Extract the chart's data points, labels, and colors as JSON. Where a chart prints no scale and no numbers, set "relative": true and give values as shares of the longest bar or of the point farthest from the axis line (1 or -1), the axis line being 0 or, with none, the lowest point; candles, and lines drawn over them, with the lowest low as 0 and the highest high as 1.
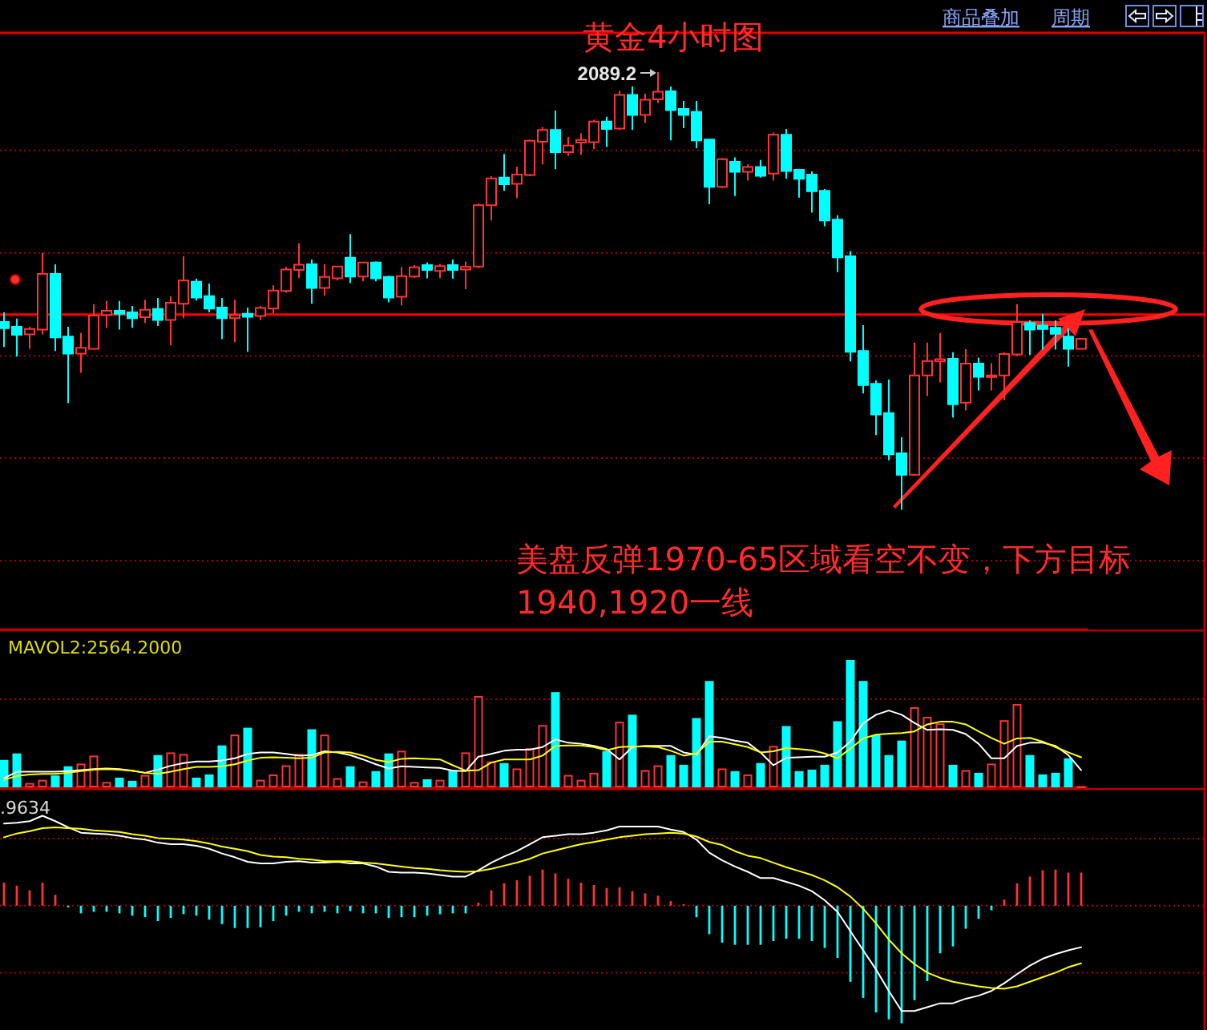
{
  "chart_data": [
    {
      "type": "candlestick",
      "title": "黄金4小时图",
      "relative": true,
      "categories": [
        null,
        null,
        null,
        null,
        null,
        null,
        null,
        null,
        null,
        null,
        null,
        null,
        null,
        null,
        null,
        null,
        null,
        null,
        null,
        null,
        null,
        null,
        null,
        null,
        null,
        null,
        null,
        null,
        null,
        null,
        null,
        null,
        null,
        null,
        null,
        null,
        null,
        null,
        null,
        null,
        null,
        null,
        null,
        null,
        null,
        null,
        null,
        null,
        null,
        null,
        null,
        null,
        null,
        null,
        null,
        null,
        null,
        null,
        null,
        null,
        null,
        null,
        null,
        null,
        null,
        null,
        null,
        null,
        null,
        null,
        null,
        null,
        null,
        null,
        null,
        null,
        null,
        null,
        null,
        null,
        null,
        null,
        null,
        null,
        null
      ],
      "ohlc": [
        [
          0.429,
          0.451,
          0.372,
          0.415
        ],
        [
          0.418,
          0.437,
          0.35,
          0.4
        ],
        [
          0.401,
          0.418,
          0.368,
          0.413
        ],
        [
          0.412,
          0.587,
          0.401,
          0.539
        ],
        [
          0.539,
          0.561,
          0.363,
          0.394
        ],
        [
          0.396,
          0.418,
          0.244,
          0.357
        ],
        [
          0.357,
          0.404,
          0.313,
          0.37
        ],
        [
          0.368,
          0.47,
          0.368,
          0.444
        ],
        [
          0.445,
          0.477,
          0.416,
          0.455
        ],
        [
          0.455,
          0.477,
          0.412,
          0.448
        ],
        [
          0.451,
          0.466,
          0.416,
          0.438
        ],
        [
          0.44,
          0.48,
          0.427,
          0.457
        ],
        [
          0.459,
          0.484,
          0.42,
          0.434
        ],
        [
          0.434,
          0.488,
          0.376,
          0.473
        ],
        [
          0.471,
          0.579,
          0.438,
          0.524
        ],
        [
          0.521,
          0.528,
          0.478,
          0.485
        ],
        [
          0.488,
          0.517,
          0.451,
          0.46
        ],
        [
          0.462,
          0.484,
          0.39,
          0.438
        ],
        [
          0.438,
          0.48,
          0.383,
          0.445
        ],
        [
          0.448,
          0.462,
          0.361,
          0.441
        ],
        [
          0.443,
          0.466,
          0.434,
          0.461
        ],
        [
          0.46,
          0.513,
          0.449,
          0.501
        ],
        [
          0.5,
          0.555,
          0.496,
          0.549
        ],
        [
          0.548,
          0.609,
          0.53,
          0.56
        ],
        [
          0.561,
          0.572,
          0.471,
          0.507
        ],
        [
          0.507,
          0.561,
          0.489,
          0.532
        ],
        [
          0.529,
          0.556,
          0.524,
          0.556
        ],
        [
          0.576,
          0.63,
          0.518,
          0.533
        ],
        [
          0.533,
          0.565,
          0.522,
          0.565
        ],
        [
          0.565,
          0.568,
          0.522,
          0.529
        ],
        [
          0.532,
          0.535,
          0.474,
          0.485
        ],
        [
          0.487,
          0.555,
          0.467,
          0.534
        ],
        [
          0.533,
          0.559,
          0.53,
          0.554
        ],
        [
          0.559,
          0.565,
          0.529,
          0.548
        ],
        [
          0.546,
          0.562,
          0.529,
          0.557
        ],
        [
          0.559,
          0.572,
          0.528,
          0.548
        ],
        [
          0.549,
          0.567,
          0.504,
          0.555
        ],
        [
          0.556,
          0.7,
          0.552,
          0.696
        ],
        [
          0.696,
          0.762,
          0.661,
          0.757
        ],
        [
          0.759,
          0.813,
          0.729,
          0.744
        ],
        [
          0.745,
          0.784,
          0.712,
          0.766
        ],
        [
          0.765,
          0.846,
          0.762,
          0.843
        ],
        [
          0.841,
          0.874,
          0.789,
          0.868
        ],
        [
          0.868,
          0.912,
          0.778,
          0.817
        ],
        [
          0.817,
          0.852,
          0.809,
          0.832
        ],
        [
          0.839,
          0.86,
          0.811,
          0.845
        ],
        [
          0.84,
          0.891,
          0.824,
          0.887
        ],
        [
          0.887,
          0.898,
          0.829,
          0.87
        ],
        [
          0.871,
          0.957,
          0.868,
          0.948
        ],
        [
          0.948,
          0.967,
          0.868,
          0.902
        ],
        [
          0.902,
          0.951,
          0.884,
          0.937
        ],
        [
          0.938,
          1,
          0.929,
          0.955
        ],
        [
          0.956,
          0.967,
          0.844,
          0.913
        ],
        [
          0.916,
          0.934,
          0.872,
          0.902
        ],
        [
          0.909,
          0.934,
          0.826,
          0.844
        ],
        [
          0.846,
          0.846,
          0.698,
          0.738
        ],
        [
          0.738,
          0.804,
          0.735,
          0.801
        ],
        [
          0.795,
          0.805,
          0.717,
          0.772
        ],
        [
          0.772,
          0.789,
          0.752,
          0.783
        ],
        [
          0.783,
          0.799,
          0.759,
          0.763
        ],
        [
          0.768,
          0.862,
          0.752,
          0.857
        ],
        [
          0.857,
          0.87,
          0.756,
          0.774
        ],
        [
          0.777,
          0.779,
          0.713,
          0.756
        ],
        [
          0.766,
          0.773,
          0.679,
          0.728
        ],
        [
          0.729,
          0.733,
          0.648,
          0.661
        ],
        [
          0.663,
          0.673,
          0.543,
          0.577
        ],
        [
          0.579,
          0.591,
          0.339,
          0.361
        ],
        [
          0.363,
          0.422,
          0.266,
          0.285
        ],
        [
          0.288,
          0.296,
          0.171,
          0.218
        ],
        [
          0.221,
          0.298,
          0.113,
          0.127
        ],
        [
          0.129,
          0.166,
          0,
          0.08
        ],
        [
          0.08,
          0.382,
          0.078,
          0.307
        ],
        [
          0.307,
          0.382,
          0.26,
          0.34
        ],
        [
          0.339,
          0.404,
          0.291,
          0.344
        ],
        [
          0.345,
          0.36,
          0.211,
          0.241
        ],
        [
          0.245,
          0.367,
          0.227,
          0.334
        ],
        [
          0.334,
          0.348,
          0.273,
          0.304
        ],
        [
          0.304,
          0.335,
          0.273,
          0.307
        ],
        [
          0.307,
          0.36,
          0.251,
          0.356
        ],
        [
          0.355,
          0.47,
          0.351,
          0.429
        ],
        [
          0.427,
          0.433,
          0.354,
          0.412
        ],
        [
          0.421,
          0.448,
          0.366,
          0.413
        ],
        [
          0.416,
          0.433,
          0.366,
          0.402
        ],
        [
          0.396,
          0.415,
          0.327,
          0.368
        ],
        [
          0.368,
          0.391,
          0.368,
          0.391
        ]
      ],
      "colors": [
        "#00ffff",
        "#00ffff",
        "#ff3232",
        "#ff3232",
        "#00ffff",
        "#00ffff",
        "#ff3232",
        "#ff3232",
        "#ff3232",
        "#00ffff",
        "#00ffff",
        "#ff3232",
        "#00ffff",
        "#ff3232",
        "#ff3232",
        "#00ffff",
        "#00ffff",
        "#00ffff",
        "#ff3232",
        "#00ffff",
        "#ff3232",
        "#ff3232",
        "#ff3232",
        "#ff3232",
        "#00ffff",
        "#ff3232",
        "#ff3232",
        "#00ffff",
        "#ff3232",
        "#00ffff",
        "#00ffff",
        "#ff3232",
        "#ff3232",
        "#00ffff",
        "#ff3232",
        "#00ffff",
        "#ff3232",
        "#ff3232",
        "#ff3232",
        "#00ffff",
        "#ff3232",
        "#ff3232",
        "#ff3232",
        "#00ffff",
        "#ff3232",
        "#ff3232",
        "#ff3232",
        "#00ffff",
        "#ff3232",
        "#00ffff",
        "#ff3232",
        "#ff3232",
        "#00ffff",
        "#00ffff",
        "#00ffff",
        "#00ffff",
        "#ff3232",
        "#00ffff",
        "#ff3232",
        "#00ffff",
        "#ff3232",
        "#00ffff",
        "#00ffff",
        "#00ffff",
        "#00ffff",
        "#00ffff",
        "#00ffff",
        "#00ffff",
        "#00ffff",
        "#00ffff",
        "#00ffff",
        "#ff3232",
        "#ff3232",
        "#ff3232",
        "#00ffff",
        "#ff3232",
        "#00ffff",
        "#ff3232",
        "#ff3232",
        "#ff3232",
        "#00ffff",
        "#00ffff",
        "#00ffff",
        "#00ffff",
        "#ff3232"
      ],
      "ref_lines": [
        {
          "axis": "y",
          "value": 0.446,
          "color": "#ff0000"
        },
        {
          "axis": "y",
          "value": 0.821,
          "color": "#a80000",
          "line_style": "dotted"
        },
        {
          "axis": "y",
          "value": 0.587,
          "color": "#a80000",
          "line_style": "dotted"
        },
        {
          "axis": "y",
          "value": 0.352,
          "color": "#a80000",
          "line_style": "dotted"
        },
        {
          "axis": "y",
          "value": 0.118,
          "color": "#a80000",
          "line_style": "dotted"
        },
        {
          "axis": "y",
          "value": -0.116,
          "color": "#a80000",
          "line_style": "dotted"
        }
      ],
      "annotations": [
        "2089.2",
        "美盘反弹1970-65区域看空不变，下方目标1940,1920一线",
        "商品叠加",
        "周期"
      ]
    },
    {
      "type": "bar",
      "relative": true,
      "categories": [
        null,
        null,
        null,
        null,
        null,
        null,
        null,
        null,
        null,
        null,
        null,
        null,
        null,
        null,
        null,
        null,
        null,
        null,
        null,
        null,
        null,
        null,
        null,
        null,
        null,
        null,
        null,
        null,
        null,
        null,
        null,
        null,
        null,
        null,
        null,
        null,
        null,
        null,
        null,
        null,
        null,
        null,
        null,
        null,
        null,
        null,
        null,
        null,
        null,
        null,
        null,
        null,
        null,
        null,
        null,
        null,
        null,
        null,
        null,
        null,
        null,
        null,
        null,
        null,
        null,
        null,
        null,
        null,
        null,
        null,
        null,
        null,
        null,
        null,
        null,
        null,
        null,
        null,
        null,
        null,
        null,
        null,
        null,
        null,
        null
      ],
      "series": [
        {
          "type": "bar",
          "values": [
            0.215,
            0.266,
            0.034,
            0.059,
            0.093,
            0.165,
            0.186,
            0.249,
            0.042,
            0.076,
            0.051,
            0.097,
            0.253,
            0.274,
            0.262,
            0.076,
            0.101,
            0.329,
            0.414,
            0.468,
            0.059,
            0.101,
            0.173,
            0.262,
            0.456,
            0.414,
            0.072,
            0.165,
            0.046,
            0.127,
            0.266,
            0.287,
            0.042,
            0.063,
            0.059,
            0.135,
            0.274,
            0.717,
            0.203,
            0.19,
            0.148,
            0.308,
            0.489,
            0.747,
            0.097,
            0.059,
            0.114,
            0.283,
            0.515,
            0.57,
            0.135,
            0.173,
            0.253,
            0.177,
            0.544,
            0.835,
            0.148,
            0.127,
            0.101,
            0.19,
            0.325,
            0.481,
            0.127,
            0.139,
            0.177,
            0.519,
            1,
            0.835,
            0.409,
            0.253,
            0.367,
            0.629,
            0.553,
            0.502,
            0.177,
            0.135,
            0.114,
            0.186,
            0.527,
            0.654,
            0.253,
            0.101,
            0.114,
            0.228,
            0.008
          ],
          "colors": [
            "#00ffff",
            "#00ffff",
            "#ff3232",
            "#ff3232",
            "#00ffff",
            "#00ffff",
            "#ff3232",
            "#ff3232",
            "#ff3232",
            "#00ffff",
            "#00ffff",
            "#ff3232",
            "#00ffff",
            "#ff3232",
            "#ff3232",
            "#00ffff",
            "#00ffff",
            "#00ffff",
            "#ff3232",
            "#00ffff",
            "#ff3232",
            "#ff3232",
            "#ff3232",
            "#ff3232",
            "#00ffff",
            "#ff3232",
            "#ff3232",
            "#00ffff",
            "#ff3232",
            "#00ffff",
            "#00ffff",
            "#ff3232",
            "#ff3232",
            "#00ffff",
            "#ff3232",
            "#00ffff",
            "#ff3232",
            "#ff3232",
            "#ff3232",
            "#00ffff",
            "#ff3232",
            "#ff3232",
            "#ff3232",
            "#00ffff",
            "#ff3232",
            "#ff3232",
            "#ff3232",
            "#00ffff",
            "#ff3232",
            "#00ffff",
            "#ff3232",
            "#ff3232",
            "#00ffff",
            "#00ffff",
            "#00ffff",
            "#00ffff",
            "#ff3232",
            "#00ffff",
            "#ff3232",
            "#00ffff",
            "#ff3232",
            "#00ffff",
            "#00ffff",
            "#00ffff",
            "#00ffff",
            "#00ffff",
            "#00ffff",
            "#00ffff",
            "#00ffff",
            "#00ffff",
            "#00ffff",
            "#ff3232",
            "#ff3232",
            "#ff3232",
            "#00ffff",
            "#ff3232",
            "#00ffff",
            "#ff3232",
            "#ff3232",
            "#ff3232",
            "#00ffff",
            "#00ffff",
            "#00ffff",
            "#00ffff",
            "#ff3232"
          ]
        },
        {
          "type": "line",
          "color": "#ffffff",
          "values": [
            0.072,
            0.122,
            0.122,
            0.122,
            0.122,
            0.127,
            0.135,
            0.143,
            0.148,
            0.143,
            0.131,
            0.114,
            0.139,
            0.169,
            0.19,
            0.203,
            0.203,
            0.211,
            0.228,
            0.262,
            0.274,
            0.274,
            0.262,
            0.249,
            0.253,
            0.283,
            0.274,
            0.253,
            0.219,
            0.181,
            0.148,
            0.165,
            0.16,
            0.156,
            0.152,
            0.131,
            0.127,
            0.241,
            0.262,
            0.287,
            0.295,
            0.295,
            0.316,
            0.376,
            0.35,
            0.342,
            0.325,
            0.3,
            0.219,
            0.316,
            0.325,
            0.325,
            0.325,
            0.274,
            0.257,
            0.401,
            0.388,
            0.367,
            0.35,
            0.274,
            0.173,
            0.232,
            0.236,
            0.241,
            0.241,
            0.274,
            0.359,
            0.502,
            0.57,
            0.603,
            0.57,
            0.506,
            0.451,
            0.456,
            0.451,
            0.418,
            0.342,
            0.228,
            0.228,
            0.325,
            0.35,
            0.35,
            0.325,
            0.253,
            0.135
          ]
        },
        {
          "type": "line",
          "color": "#ffff00",
          "values": [
            0.059,
            0.089,
            0.101,
            0.105,
            0.105,
            0.114,
            0.127,
            0.139,
            0.143,
            0.139,
            0.131,
            0.114,
            0.105,
            0.122,
            0.143,
            0.16,
            0.16,
            0.165,
            0.181,
            0.211,
            0.232,
            0.236,
            0.232,
            0.228,
            0.232,
            0.274,
            0.278,
            0.274,
            0.249,
            0.215,
            0.198,
            0.224,
            0.228,
            0.224,
            0.219,
            0.173,
            0.131,
            0.135,
            0.194,
            0.219,
            0.219,
            0.219,
            0.249,
            0.325,
            0.329,
            0.329,
            0.316,
            0.291,
            0.316,
            0.321,
            0.321,
            0.316,
            0.287,
            0.249,
            0.266,
            0.359,
            0.359,
            0.338,
            0.316,
            0.274,
            0.283,
            0.308,
            0.3,
            0.291,
            0.266,
            0.228,
            0.304,
            0.384,
            0.414,
            0.422,
            0.426,
            0.439,
            0.494,
            0.515,
            0.515,
            0.494,
            0.439,
            0.388,
            0.342,
            0.384,
            0.388,
            0.359,
            0.316,
            0.274,
            0.236
          ]
        }
      ],
      "ref_lines": [
        {
          "axis": "y",
          "value": 0.692,
          "color": "#a80000",
          "line_style": "dotted"
        }
      ],
      "annotations": [
        "MAVOL2:2564.2000"
      ]
    },
    {
      "type": "bar",
      "relative": true,
      "categories": [
        null,
        null,
        null,
        null,
        null,
        null,
        null,
        null,
        null,
        null,
        null,
        null,
        null,
        null,
        null,
        null,
        null,
        null,
        null,
        null,
        null,
        null,
        null,
        null,
        null,
        null,
        null,
        null,
        null,
        null,
        null,
        null,
        null,
        null,
        null,
        null,
        null,
        null,
        null,
        null,
        null,
        null,
        null,
        null,
        null,
        null,
        null,
        null,
        null,
        null,
        null,
        null,
        null,
        null,
        null,
        null,
        null,
        null,
        null,
        null,
        null,
        null,
        null,
        null,
        null,
        null,
        null,
        null,
        null,
        null,
        null,
        null,
        null,
        null,
        null,
        null,
        null,
        null,
        null,
        null,
        null,
        null,
        null,
        null,
        null
      ],
      "series": [
        {
          "type": "bar",
          "values": [
            0.196,
            0.17,
            0.131,
            0.196,
            0.092,
            -0.013,
            -0.065,
            -0.052,
            -0.052,
            -0.065,
            -0.085,
            -0.098,
            -0.131,
            -0.105,
            -0.072,
            -0.085,
            -0.118,
            -0.157,
            -0.19,
            -0.19,
            -0.183,
            -0.131,
            -0.085,
            -0.052,
            -0.065,
            -0.052,
            -0.065,
            -0.046,
            -0.065,
            -0.065,
            -0.105,
            -0.098,
            -0.098,
            -0.085,
            -0.072,
            -0.065,
            -0.065,
            0.026,
            0.131,
            0.19,
            0.216,
            0.255,
            0.307,
            0.275,
            0.229,
            0.196,
            0.176,
            0.15,
            0.157,
            0.124,
            0.105,
            0.085,
            0.039,
            0.013,
            -0.098,
            -0.242,
            -0.314,
            -0.333,
            -0.333,
            -0.333,
            -0.301,
            -0.281,
            -0.281,
            -0.301,
            -0.359,
            -0.444,
            -0.647,
            -0.784,
            -0.908,
            -0.967,
            -1,
            -0.804,
            -0.641,
            -0.405,
            -0.346,
            -0.196,
            -0.111,
            -0.039,
            0.052,
            0.19,
            0.248,
            0.301,
            0.307,
            0.281,
            0.281
          ],
          "colors": [
            "#ff3232",
            "#ff3232",
            "#ff3232",
            "#ff3232",
            "#ff3232",
            "#00ffff",
            "#00ffff",
            "#00ffff",
            "#00ffff",
            "#00ffff",
            "#00ffff",
            "#00ffff",
            "#00ffff",
            "#00ffff",
            "#00ffff",
            "#00ffff",
            "#00ffff",
            "#00ffff",
            "#00ffff",
            "#00ffff",
            "#00ffff",
            "#00ffff",
            "#00ffff",
            "#00ffff",
            "#00ffff",
            "#00ffff",
            "#00ffff",
            "#00ffff",
            "#00ffff",
            "#00ffff",
            "#00ffff",
            "#00ffff",
            "#00ffff",
            "#00ffff",
            "#00ffff",
            "#00ffff",
            "#00ffff",
            "#ff3232",
            "#ff3232",
            "#ff3232",
            "#ff3232",
            "#ff3232",
            "#ff3232",
            "#ff3232",
            "#ff3232",
            "#ff3232",
            "#ff3232",
            "#ff3232",
            "#ff3232",
            "#ff3232",
            "#ff3232",
            "#ff3232",
            "#ff3232",
            "#ff3232",
            "#00ffff",
            "#00ffff",
            "#00ffff",
            "#00ffff",
            "#00ffff",
            "#00ffff",
            "#00ffff",
            "#00ffff",
            "#00ffff",
            "#00ffff",
            "#00ffff",
            "#00ffff",
            "#00ffff",
            "#00ffff",
            "#00ffff",
            "#00ffff",
            "#00ffff",
            "#00ffff",
            "#00ffff",
            "#00ffff",
            "#00ffff",
            "#00ffff",
            "#00ffff",
            "#00ffff",
            "#ff3232",
            "#ff3232",
            "#ff3232",
            "#ff3232",
            "#ff3232",
            "#ff3232",
            "#ff3232"
          ]
        },
        {
          "type": "line",
          "color": "#ffffff",
          "values": [
            0.699,
            0.706,
            0.719,
            0.765,
            0.719,
            0.667,
            0.621,
            0.614,
            0.608,
            0.595,
            0.575,
            0.562,
            0.536,
            0.523,
            0.523,
            0.51,
            0.484,
            0.444,
            0.412,
            0.373,
            0.359,
            0.359,
            0.373,
            0.379,
            0.366,
            0.366,
            0.373,
            0.359,
            0.359,
            0.333,
            0.288,
            0.281,
            0.281,
            0.275,
            0.261,
            0.248,
            0.248,
            0.301,
            0.366,
            0.418,
            0.464,
            0.523,
            0.582,
            0.595,
            0.608,
            0.608,
            0.621,
            0.641,
            0.673,
            0.673,
            0.673,
            0.673,
            0.647,
            0.627,
            0.562,
            0.451,
            0.386,
            0.333,
            0.288,
            0.235,
            0.235,
            0.203,
            0.17,
            0.124,
            0.046,
            -0.052,
            -0.216,
            -0.379,
            -0.542,
            -0.725,
            -0.895,
            -0.895,
            -0.863,
            -0.83,
            -0.83,
            -0.791,
            -0.765,
            -0.725,
            -0.66,
            -0.582,
            -0.51,
            -0.451,
            -0.412,
            -0.379,
            -0.353
          ]
        },
        {
          "type": "line",
          "color": "#ffff00",
          "values": [
            0.582,
            0.614,
            0.634,
            0.66,
            0.667,
            0.66,
            0.654,
            0.641,
            0.634,
            0.627,
            0.608,
            0.595,
            0.575,
            0.569,
            0.562,
            0.549,
            0.529,
            0.503,
            0.484,
            0.464,
            0.431,
            0.418,
            0.412,
            0.399,
            0.392,
            0.379,
            0.379,
            0.379,
            0.366,
            0.359,
            0.346,
            0.333,
            0.32,
            0.314,
            0.301,
            0.294,
            0.288,
            0.294,
            0.314,
            0.34,
            0.366,
            0.399,
            0.444,
            0.471,
            0.497,
            0.523,
            0.542,
            0.562,
            0.582,
            0.595,
            0.608,
            0.614,
            0.621,
            0.614,
            0.588,
            0.542,
            0.516,
            0.464,
            0.425,
            0.405,
            0.366,
            0.327,
            0.294,
            0.261,
            0.216,
            0.157,
            0.078,
            -0.026,
            -0.15,
            -0.288,
            -0.405,
            -0.497,
            -0.569,
            -0.614,
            -0.647,
            -0.667,
            -0.686,
            -0.699,
            -0.706,
            -0.686,
            -0.647,
            -0.608,
            -0.569,
            -0.523,
            -0.49
          ]
        }
      ],
      "ref_lines": [
        {
          "axis": "y",
          "value": 0.57,
          "color": "#a80000",
          "line_style": "dotted"
        },
        {
          "axis": "y",
          "value": 0,
          "color": "#a80000",
          "line_style": "dotted"
        },
        {
          "axis": "y",
          "value": -0.57,
          "color": "#a80000",
          "line_style": "dotted"
        }
      ],
      "annotations": [
        ".9634"
      ]
    }
  ]
}
